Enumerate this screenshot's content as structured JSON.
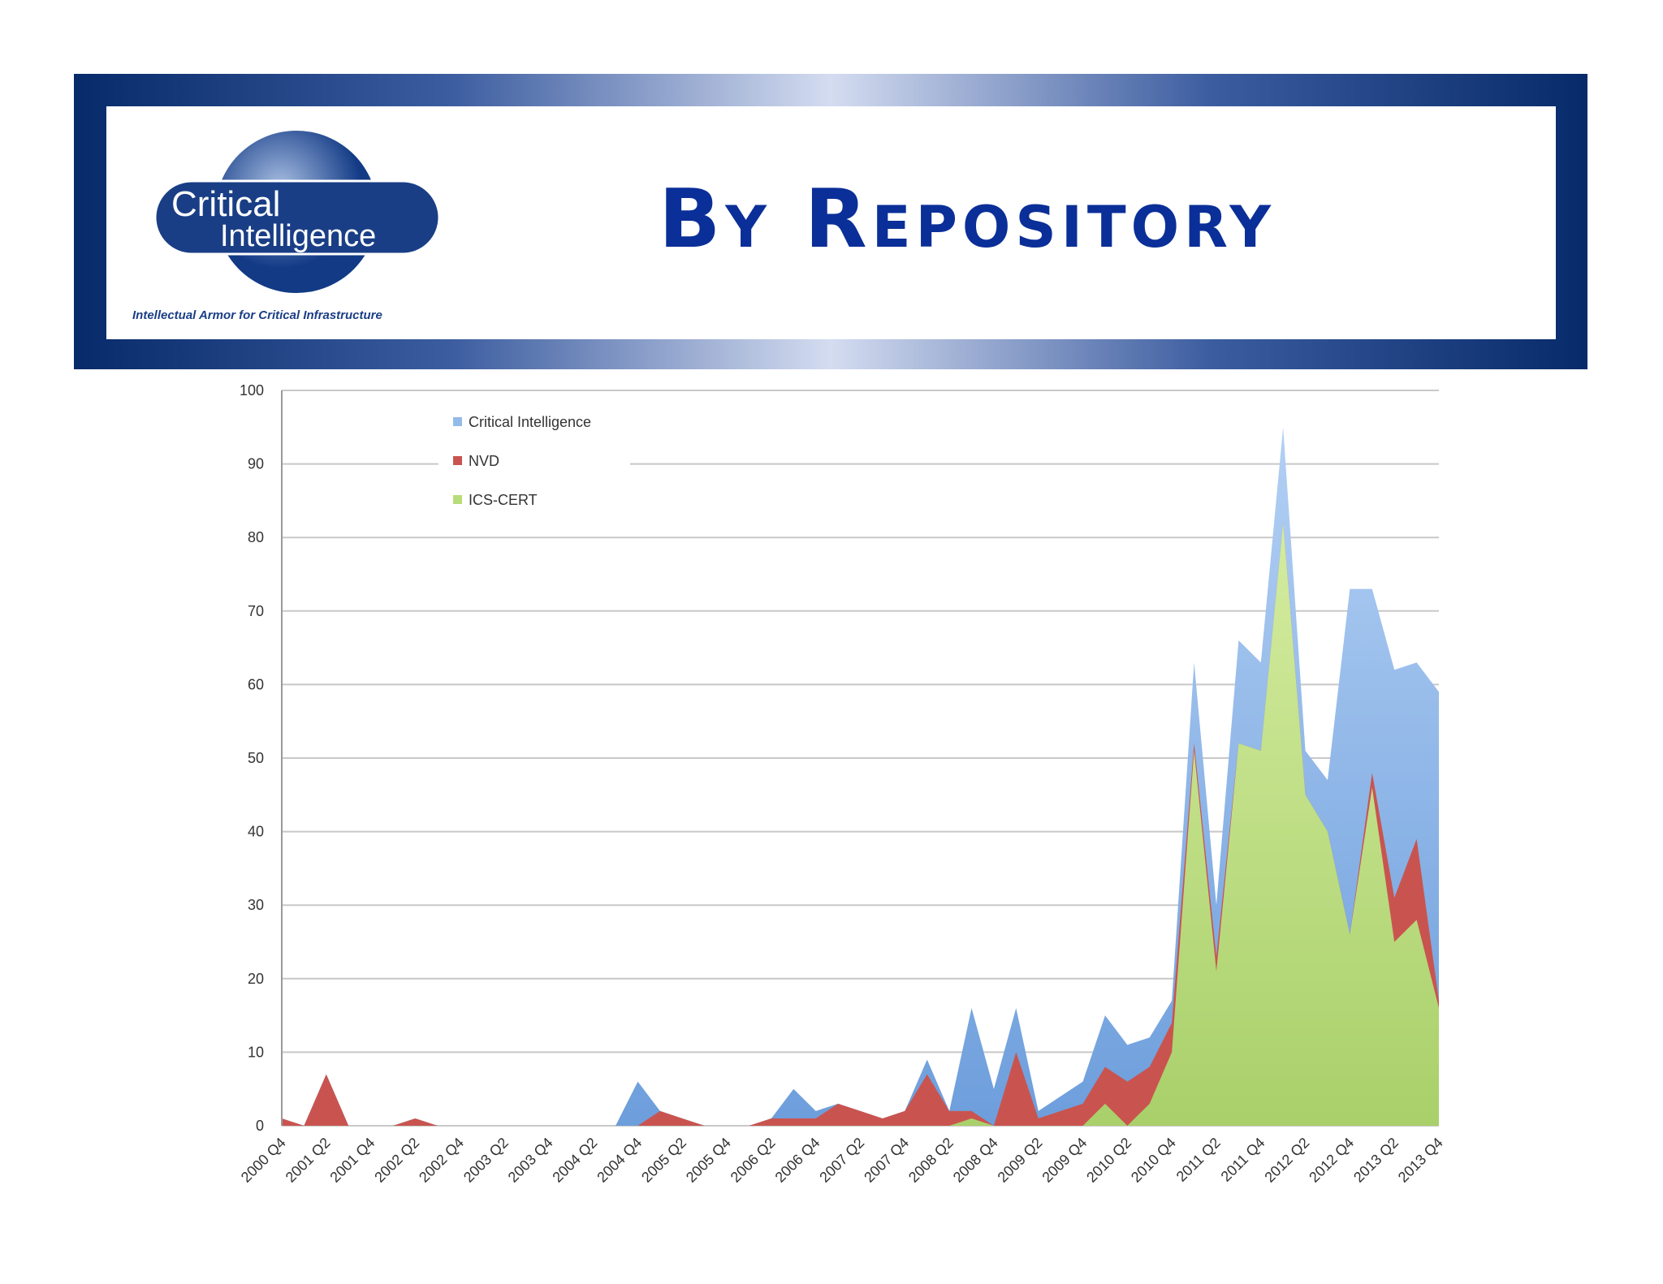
{
  "header": {
    "title": "By Repository"
  },
  "logo": {
    "line1": "Critical",
    "line2": "Intelligence",
    "tagline": "Intellectual Armor for Critical Infrastructure"
  },
  "chart_data": {
    "type": "area",
    "categories": [
      "2000 Q4",
      null,
      "2001 Q2",
      null,
      "2001 Q4",
      null,
      "2002 Q2",
      null,
      "2002 Q4",
      null,
      "2003 Q2",
      null,
      "2003 Q4",
      null,
      "2004 Q2",
      null,
      "2004 Q4",
      null,
      "2005 Q2",
      null,
      "2005 Q4",
      null,
      "2006 Q2",
      null,
      "2006 Q4",
      null,
      "2007 Q2",
      null,
      "2007 Q4",
      null,
      "2008 Q2",
      null,
      "2008 Q4",
      null,
      "2009 Q2",
      null,
      "2009 Q4",
      null,
      "2010 Q2",
      null,
      "2010 Q4",
      null,
      "2011 Q2",
      null,
      "2011 Q4",
      null,
      "2012 Q2",
      null,
      "2012 Q4",
      null,
      "2013 Q2",
      null,
      "2013 Q4"
    ],
    "series": [
      {
        "name": "Critical Intelligence",
        "color": "#93bbea",
        "values": [
          1,
          0,
          7,
          0,
          0,
          0,
          1,
          0,
          0,
          0,
          0,
          0,
          0,
          0,
          0,
          0,
          6,
          2,
          1,
          0,
          0,
          0,
          1,
          5,
          2,
          3,
          2,
          1,
          2,
          9,
          2,
          16,
          5,
          16,
          2,
          4,
          6,
          15,
          11,
          12,
          17,
          63,
          30,
          66,
          63,
          95,
          51,
          47,
          73,
          73,
          62,
          63,
          59
        ]
      },
      {
        "name": "NVD",
        "color": "#c9544f",
        "values": [
          1,
          0,
          7,
          0,
          0,
          0,
          1,
          0,
          0,
          0,
          0,
          0,
          0,
          0,
          0,
          0,
          0,
          2,
          1,
          0,
          0,
          0,
          1,
          1,
          1,
          3,
          2,
          1,
          2,
          7,
          2,
          2,
          0,
          10,
          1,
          2,
          3,
          8,
          6,
          8,
          14,
          52,
          23,
          52,
          51,
          82,
          45,
          40,
          26,
          48,
          31,
          39,
          17
        ]
      },
      {
        "name": "ICS-CERT",
        "color": "#b9dc7a",
        "values": [
          0,
          0,
          0,
          0,
          0,
          0,
          0,
          0,
          0,
          0,
          0,
          0,
          0,
          0,
          0,
          0,
          0,
          0,
          0,
          0,
          0,
          0,
          0,
          0,
          0,
          0,
          0,
          0,
          0,
          0,
          0,
          1,
          0,
          0,
          0,
          0,
          0,
          3,
          0,
          3,
          10,
          51,
          21,
          52,
          51,
          82,
          45,
          40,
          26,
          46,
          25,
          28,
          16
        ]
      }
    ],
    "ylim": [
      0,
      100
    ],
    "yticks": [
      0,
      10,
      20,
      30,
      40,
      50,
      60,
      70,
      80,
      90,
      100
    ],
    "grid": true
  }
}
